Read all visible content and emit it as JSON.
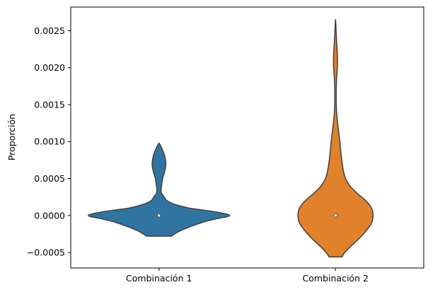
{
  "chart_data": {
    "type": "violin",
    "title": "",
    "xlabel": "",
    "ylabel": "Proporción",
    "ylim": [
      -0.00071,
      0.00282
    ],
    "yticks": [
      -0.0005,
      0.0,
      0.0005,
      0.001,
      0.0015,
      0.002,
      0.0025
    ],
    "ytick_labels": [
      "−0.0005",
      "0.0000",
      "0.0005",
      "0.0010",
      "0.0015",
      "0.0020",
      "0.0025"
    ],
    "categories": [
      "Combinación 1",
      "Combinación 2"
    ],
    "grid": false,
    "legend": "none",
    "series": [
      {
        "category": "Combinación 1",
        "color": "#3274a1",
        "median": 0.0,
        "range": [
          -0.00028,
          0.00098
        ],
        "density_profile": [
          [
            -0.00028,
            0.17
          ],
          [
            -0.0002,
            0.31
          ],
          [
            -0.0001,
            0.58
          ],
          [
            -5e-05,
            0.77
          ],
          [
            0.0,
            0.98
          ],
          [
            5e-05,
            0.78
          ],
          [
            0.0001,
            0.42
          ],
          [
            0.00015,
            0.22
          ],
          [
            0.0002,
            0.11
          ],
          [
            0.00024,
            0.08
          ],
          [
            0.00028,
            0.05
          ],
          [
            0.0003,
            0.035
          ],
          [
            0.00035,
            0.03
          ],
          [
            0.0004,
            0.035
          ],
          [
            0.0005,
            0.05
          ],
          [
            0.0006,
            0.08
          ],
          [
            0.0007,
            0.095
          ],
          [
            0.0008,
            0.08
          ],
          [
            0.00087,
            0.055
          ],
          [
            0.00093,
            0.03
          ],
          [
            0.00098,
            0.0
          ]
        ]
      },
      {
        "category": "Combinación 2",
        "color": "#e1812c",
        "median": 0.0,
        "range": [
          -0.00056,
          0.00265
        ],
        "density_profile": [
          [
            -0.00056,
            0.09
          ],
          [
            -0.0005,
            0.13
          ],
          [
            -0.0004,
            0.23
          ],
          [
            -0.0003,
            0.34
          ],
          [
            -0.0002,
            0.43
          ],
          [
            -0.0001,
            0.5
          ],
          [
            0.0,
            0.52
          ],
          [
            0.0001,
            0.5
          ],
          [
            0.0002,
            0.42
          ],
          [
            0.0003,
            0.3
          ],
          [
            0.0004,
            0.2
          ],
          [
            0.0005,
            0.14
          ],
          [
            0.0006,
            0.11
          ],
          [
            0.0008,
            0.08
          ],
          [
            0.001,
            0.06
          ],
          [
            0.0012,
            0.035
          ],
          [
            0.0014,
            0.015
          ],
          [
            0.0016,
            0.01
          ],
          [
            0.0018,
            0.013
          ],
          [
            0.002,
            0.025
          ],
          [
            0.0021,
            0.028
          ],
          [
            0.0022,
            0.025
          ],
          [
            0.0024,
            0.013
          ],
          [
            0.0026,
            0.004
          ],
          [
            0.00265,
            0.0
          ]
        ]
      }
    ]
  }
}
